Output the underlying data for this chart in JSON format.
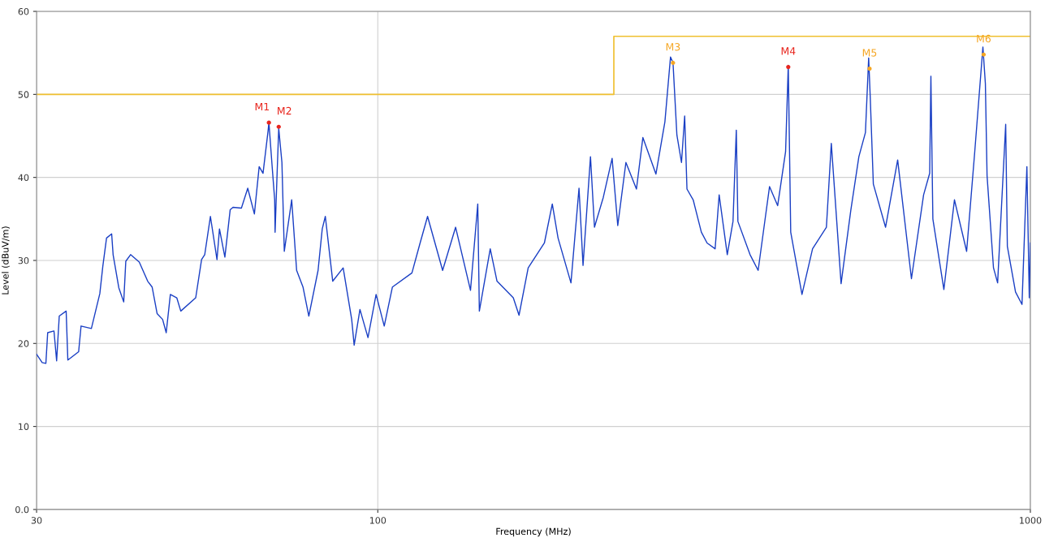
{
  "chart_data": {
    "type": "line",
    "xlabel": "Frequency (MHz)",
    "ylabel": "Level (dBuV/m)",
    "log": "x",
    "grid": true,
    "marker": "none",
    "line_style": "solid",
    "xlim": [
      30,
      1000
    ],
    "xticks": [
      30,
      100,
      1000
    ],
    "ylim": [
      0,
      60
    ],
    "yticks": [
      {
        "value": 0,
        "label": "0.0"
      },
      10,
      20,
      30,
      40,
      50,
      60
    ],
    "series": [
      {
        "color": "#1a3fc4",
        "x": [
          30.0,
          30.6,
          31.0,
          31.2,
          31.9,
          32.2,
          32.5,
          33.3,
          33.5,
          34.8,
          35.1,
          36.4,
          37.5,
          37.9,
          38.4,
          39.1,
          39.3,
          40.1,
          40.8,
          41.1,
          41.8,
          43.1,
          44.4,
          45.1,
          45.9,
          46.8,
          47.4,
          48.1,
          49.2,
          49.9,
          52.6,
          53.7,
          54.3,
          55.4,
          56.7,
          57.2,
          58.3,
          59.4,
          60.0,
          61.8,
          63.2,
          64.7,
          65.8,
          66.7,
          67.9,
          68.1,
          68.9,
          69.5,
          69.6,
          70.1,
          70.5,
          71.3,
          71.9,
          73.8,
          75.1,
          76.8,
          78.4,
          81.0,
          82.2,
          83.1,
          85.3,
          88.5,
          91.2,
          92.0,
          93.9,
          96.6,
          99.4,
          102.3,
          105.3,
          112.8,
          116.1,
          119.2,
          125.7,
          131.6,
          138.7,
          142.3,
          143.1,
          148.7,
          152.3,
          161.3,
          164.6,
          170.0,
          180.0,
          185.1,
          188.9,
          197.7,
          203.4,
          206.3,
          211.8,
          214.8,
          221.6,
          228.6,
          233.2,
          240.0,
          249.1,
          254.8,
          266.8,
          275.4,
          280.9,
          283.4,
          287.3,
          292.0,
          295.3,
          297.7,
          304.3,
          313.2,
          319.6,
          328.8,
          333.5,
          343.2,
          350.2,
          354.3,
          356.3,
          371.9,
          382.7,
          392.7,
          398.4,
          410.0,
          421.6,
          425.6,
          429.3,
          446.7,
          463.7,
          486.9,
          495.4,
          512.8,
          530.6,
          546.0,
          558.8,
          565.2,
          568.4,
          574.6,
          599.9,
          626.1,
          657.3,
          686.1,
          701.0,
          704.0,
          708.9,
          737.0,
          765.0,
          798.6,
          821.8,
          845.8,
          853.2,
          858.3,
          878.0,
          890.9,
          916.6,
          922.0,
          949.0,
          970.9,
          987.8,
          996.2,
          1000
        ],
        "values": [
          18.7,
          17.7,
          17.6,
          21.3,
          21.5,
          17.9,
          23.3,
          23.9,
          18.0,
          19.0,
          22.1,
          21.8,
          26.0,
          29.3,
          32.7,
          33.2,
          30.7,
          26.7,
          25.0,
          29.9,
          30.7,
          29.8,
          27.5,
          26.8,
          23.6,
          22.9,
          21.3,
          25.9,
          25.5,
          23.9,
          25.5,
          30.1,
          30.7,
          35.3,
          30.1,
          33.8,
          30.4,
          36.1,
          36.4,
          36.3,
          38.7,
          35.6,
          41.3,
          40.5,
          45.6,
          46.6,
          41.2,
          37.3,
          33.4,
          40.5,
          45.9,
          41.8,
          31.1,
          37.3,
          28.8,
          26.8,
          23.3,
          28.8,
          33.8,
          35.3,
          27.5,
          29.1,
          22.9,
          19.8,
          24.1,
          20.7,
          25.9,
          22.1,
          26.8,
          28.5,
          32.1,
          35.3,
          28.8,
          34.0,
          26.4,
          36.8,
          23.9,
          31.4,
          27.5,
          25.5,
          23.4,
          29.1,
          32.1,
          36.8,
          32.7,
          27.3,
          38.7,
          29.4,
          42.5,
          34.0,
          37.6,
          42.3,
          34.2,
          41.8,
          38.6,
          44.8,
          40.4,
          46.7,
          54.5,
          53.8,
          45.1,
          41.8,
          47.4,
          38.6,
          37.3,
          33.4,
          32.1,
          31.4,
          37.9,
          30.7,
          34.7,
          45.7,
          34.7,
          30.7,
          28.8,
          35.3,
          38.9,
          36.6,
          43.1,
          53.5,
          33.4,
          25.9,
          31.4,
          34.0,
          44.1,
          27.2,
          36.0,
          42.5,
          45.4,
          54.4,
          49.6,
          39.2,
          34.0,
          42.1,
          27.8,
          37.9,
          40.5,
          52.2,
          35.0,
          26.5,
          37.3,
          31.1,
          43.1,
          55.7,
          51.3,
          40.2,
          29.1,
          27.3,
          46.4,
          31.7,
          26.2,
          24.7,
          41.3,
          25.5,
          32.1
        ]
      },
      {
        "type": "step",
        "color": "#f0c030",
        "x": [
          30,
          230,
          1000
        ],
        "values": [
          50,
          57,
          57
        ]
      },
      {
        "type": "scatter",
        "x": [
          68.1,
          70.5,
          283.4,
          425.6,
          567,
          848
        ],
        "values": [
          46.6,
          46.1,
          53.8,
          53.3,
          53.1,
          54.8
        ],
        "colors": [
          "#e8261e",
          "#e8261e",
          "#f5a623",
          "#e8261e",
          "#f5a623",
          "#f5a623"
        ]
      }
    ],
    "annotations": [
      {
        "text": "M1",
        "x": 68.1,
        "y": 46.6
      },
      {
        "text": "M2",
        "x": 70.5,
        "y": 46.1
      },
      {
        "text": "M3",
        "x": 283.4,
        "y": 53.8
      },
      {
        "text": "M4",
        "x": 425.6,
        "y": 53.3
      },
      {
        "text": "M5",
        "x": 567,
        "y": 53.1
      },
      {
        "text": "M6",
        "x": 848,
        "y": 54.8
      }
    ]
  }
}
